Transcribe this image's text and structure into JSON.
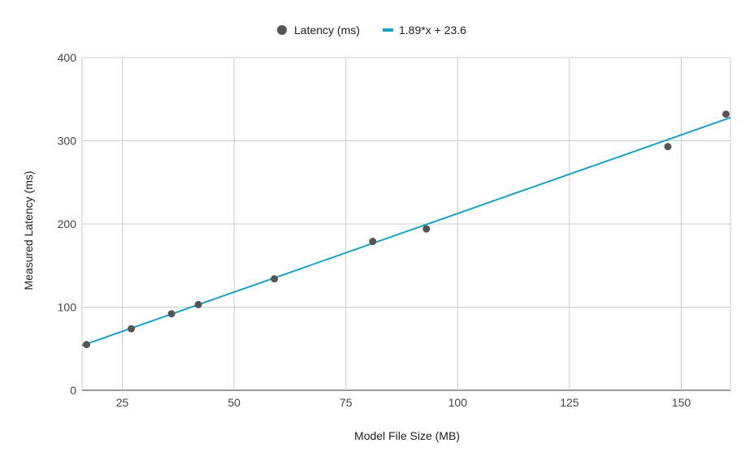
{
  "chart_data": {
    "type": "scatter",
    "title": "",
    "xlabel": "Model File Size (MB)",
    "ylabel": "Measured Latency (ms)",
    "xlim": [
      16,
      161
    ],
    "ylim": [
      0,
      400
    ],
    "x_ticks": [
      25,
      50,
      75,
      100,
      125,
      150
    ],
    "y_ticks": [
      0,
      100,
      200,
      300,
      400
    ],
    "grid": true,
    "legend_position": "top",
    "series": [
      {
        "name": "Latency (ms)",
        "kind": "scatter",
        "color": "#555555",
        "points": [
          [
            17,
            55
          ],
          [
            27,
            74
          ],
          [
            36,
            92
          ],
          [
            42,
            103
          ],
          [
            59,
            134
          ],
          [
            81,
            179
          ],
          [
            93,
            194
          ],
          [
            147,
            293
          ],
          [
            160,
            332
          ]
        ]
      },
      {
        "name": "1.89*x + 23.6",
        "kind": "trendline",
        "color": "#17a2c9",
        "slope": 1.89,
        "intercept": 23.6
      }
    ]
  }
}
